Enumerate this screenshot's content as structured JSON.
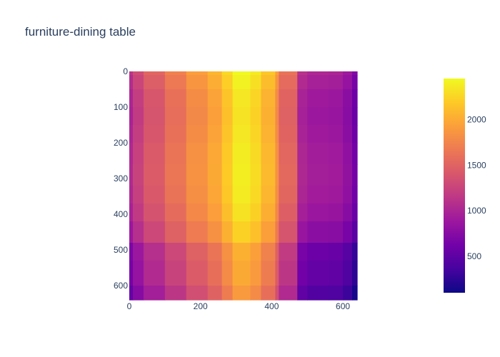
{
  "chart_data": {
    "type": "heatmap",
    "title": "furniture-dining table",
    "xlabel": "",
    "ylabel": "",
    "xlim": [
      0,
      640
    ],
    "ylim": [
      640,
      0
    ],
    "x_ticks": [
      0,
      200,
      400,
      600
    ],
    "y_ticks": [
      0,
      100,
      200,
      300,
      400,
      500,
      600
    ],
    "x_tick_labels": [
      "0",
      "200",
      "400",
      "600"
    ],
    "y_tick_labels": [
      "0",
      "100",
      "200",
      "300",
      "400",
      "500",
      "600"
    ],
    "colorbar": {
      "range": [
        100,
        2450
      ],
      "ticks": [
        500,
        1000,
        1500,
        2000
      ],
      "tick_labels": [
        "500",
        "1000",
        "1500",
        "2000"
      ],
      "colorscale": [
        "#0d0887",
        "#46039f",
        "#7201a8",
        "#9c179e",
        "#bd3786",
        "#d8576b",
        "#ed7953",
        "#fb9f3a",
        "#fdca26",
        "#f0f921"
      ]
    },
    "columns": [
      {
        "x": [
          0,
          10
        ],
        "value": 1000
      },
      {
        "x": [
          10,
          40
        ],
        "value": 1200
      },
      {
        "x": [
          40,
          100
        ],
        "value": 1400
      },
      {
        "x": [
          100,
          160
        ],
        "value": 1600
      },
      {
        "x": [
          160,
          220
        ],
        "value": 1800
      },
      {
        "x": [
          220,
          260
        ],
        "value": 1950
      },
      {
        "x": [
          260,
          290
        ],
        "value": 2150
      },
      {
        "x": [
          290,
          340
        ],
        "value": 2350
      },
      {
        "x": [
          340,
          370
        ],
        "value": 2250
      },
      {
        "x": [
          370,
          410
        ],
        "value": 2050
      },
      {
        "x": [
          410,
          420
        ],
        "value": 1800
      },
      {
        "x": [
          420,
          472
        ],
        "value": 1500
      },
      {
        "x": [
          472,
          500
        ],
        "value": 980
      },
      {
        "x": [
          500,
          560
        ],
        "value": 900
      },
      {
        "x": [
          560,
          600
        ],
        "value": 880
      },
      {
        "x": [
          600,
          626
        ],
        "value": 780
      },
      {
        "x": [
          626,
          640
        ],
        "value": 600
      }
    ],
    "rows": [
      {
        "y": [
          0,
          10
        ],
        "value": 120
      },
      {
        "y": [
          10,
          50
        ],
        "value": 60
      },
      {
        "y": [
          50,
          100
        ],
        "value": 0
      },
      {
        "y": [
          100,
          150
        ],
        "value": -20
      },
      {
        "y": [
          150,
          200
        ],
        "value": 0
      },
      {
        "y": [
          200,
          260
        ],
        "value": 30
      },
      {
        "y": [
          260,
          320
        ],
        "value": 40
      },
      {
        "y": [
          320,
          370
        ],
        "value": 20
      },
      {
        "y": [
          370,
          420
        ],
        "value": -30
      },
      {
        "y": [
          420,
          480
        ],
        "value": -120
      },
      {
        "y": [
          480,
          530
        ],
        "value": -320
      },
      {
        "y": [
          530,
          600
        ],
        "value": -360
      },
      {
        "y": [
          600,
          640
        ],
        "value": -460
      }
    ]
  }
}
